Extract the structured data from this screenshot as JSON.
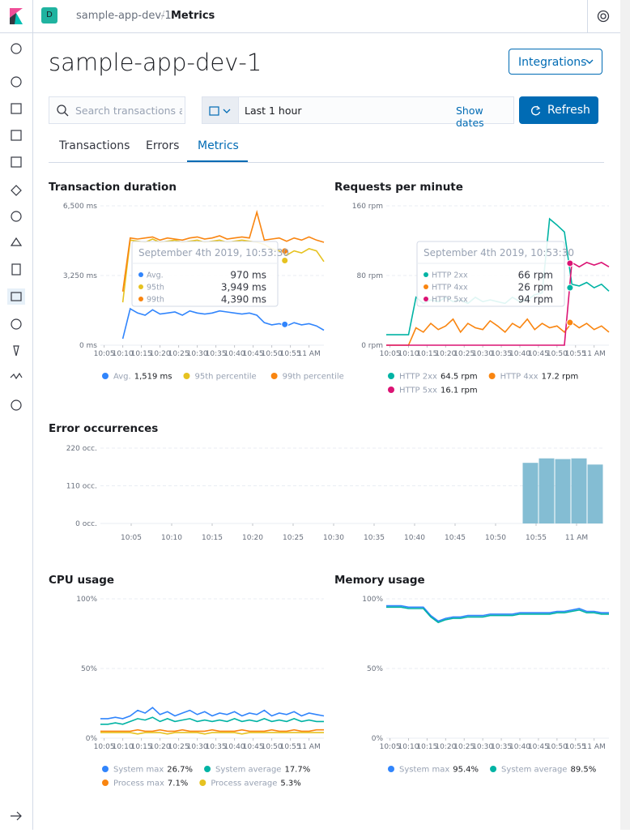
{
  "header": {
    "avatar": "D",
    "breadcrumb": [
      "sample-app-dev-1",
      "Metrics"
    ]
  },
  "title": "sample-app-dev-1",
  "integrations": "Integrations",
  "search_placeholder": "Search transactions and errors",
  "date_range": "Last 1 hour",
  "show_dates": "Show dates",
  "refresh": "Refresh",
  "tabs": [
    "Transactions",
    "Errors",
    "Metrics"
  ],
  "active_tab": 2,
  "chart_data": [
    {
      "type": "line",
      "title": "Transaction duration",
      "x": [
        4,
        6,
        8,
        10,
        12,
        14,
        16,
        18,
        20,
        22,
        24,
        26,
        28,
        30,
        32,
        34,
        36,
        38,
        40,
        42,
        44,
        46,
        48,
        50,
        52,
        54,
        56,
        58,
        60,
        62,
        64
      ],
      "xlim": [
        4,
        64
      ],
      "xticks": [
        {
          "value": 5,
          "label": "10:05"
        },
        {
          "value": 10,
          "label": "10:10"
        },
        {
          "value": 15,
          "label": "10:15"
        },
        {
          "value": 20,
          "label": "10:20"
        },
        {
          "value": 25,
          "label": "10:25"
        },
        {
          "value": 30,
          "label": "10:30"
        },
        {
          "value": 35,
          "label": "10:35"
        },
        {
          "value": 40,
          "label": "10:40"
        },
        {
          "value": 45,
          "label": "10:45"
        },
        {
          "value": 50,
          "label": "10:50"
        },
        {
          "value": 55,
          "label": "10:55"
        },
        {
          "value": 60,
          "label": "11 AM"
        }
      ],
      "ylim": [
        0,
        6500
      ],
      "yticks": [
        {
          "value": 0,
          "label": "0 ms"
        },
        {
          "value": 3250,
          "label": "3,250 ms"
        },
        {
          "value": 6500,
          "label": "6,500 ms"
        }
      ],
      "series": [
        {
          "name": "Avg.",
          "legend_value": "1,519 ms",
          "color": "#3185FC",
          "values": [
            null,
            null,
            null,
            300,
            1700,
            1500,
            1400,
            1650,
            1450,
            1500,
            1550,
            1400,
            1600,
            1500,
            1450,
            1500,
            1600,
            1550,
            1500,
            1450,
            1500,
            1400,
            1050,
            950,
            1000,
            900,
            1050,
            950,
            1000,
            900,
            700
          ]
        },
        {
          "name": "95th percentile",
          "color": "#E6C220",
          "values": [
            null,
            null,
            null,
            2000,
            4900,
            4850,
            4800,
            4950,
            4800,
            4850,
            4900,
            4800,
            4850,
            4900,
            4800,
            4850,
            4900,
            4800,
            4850,
            4900,
            4850,
            4800,
            4700,
            4500,
            4400,
            4200,
            4400,
            4300,
            4500,
            4400,
            3900
          ]
        },
        {
          "name": "99th percentile",
          "color": "#F98510",
          "values": [
            null,
            null,
            null,
            2500,
            5000,
            4950,
            5000,
            5050,
            4900,
            5000,
            4950,
            4900,
            5000,
            5050,
            4950,
            5000,
            5100,
            4950,
            5000,
            5050,
            5000,
            6200,
            4900,
            4950,
            5000,
            4850,
            5000,
            4900,
            5050,
            4900,
            4800
          ]
        }
      ],
      "tooltip": {
        "title": "September 4th 2019, 10:53:30",
        "x": 53.5,
        "names": [
          "Avg.",
          "95th",
          "99th"
        ],
        "values": [
          970,
          3949,
          4390
        ],
        "value_labels": [
          "970 ms",
          "3,949 ms",
          "4,390 ms"
        ]
      }
    },
    {
      "type": "line",
      "title": "Requests per minute",
      "x": [
        4,
        6,
        8,
        10,
        12,
        14,
        16,
        18,
        20,
        22,
        24,
        26,
        28,
        30,
        32,
        34,
        36,
        38,
        40,
        42,
        44,
        46,
        48,
        50,
        52,
        54,
        56,
        58,
        60,
        62,
        64
      ],
      "xlim": [
        4,
        64
      ],
      "xticks": [
        {
          "value": 5,
          "label": "10:05"
        },
        {
          "value": 10,
          "label": "10:10"
        },
        {
          "value": 15,
          "label": "10:15"
        },
        {
          "value": 20,
          "label": "10:20"
        },
        {
          "value": 25,
          "label": "10:25"
        },
        {
          "value": 30,
          "label": "10:30"
        },
        {
          "value": 35,
          "label": "10:35"
        },
        {
          "value": 40,
          "label": "10:40"
        },
        {
          "value": 45,
          "label": "10:45"
        },
        {
          "value": 50,
          "label": "10:50"
        },
        {
          "value": 55,
          "label": "10:55"
        },
        {
          "value": 60,
          "label": "11 AM"
        }
      ],
      "ylim": [
        0,
        160
      ],
      "yticks": [
        {
          "value": 0,
          "label": "0 rpm"
        },
        {
          "value": 80,
          "label": "80 rpm"
        },
        {
          "value": 160,
          "label": "160 rpm"
        }
      ],
      "series": [
        {
          "name": "HTTP 2xx",
          "legend_value": "64.5 rpm",
          "color": "#00B3A4",
          "values": [
            12,
            12,
            12,
            12,
            55,
            48,
            52,
            50,
            55,
            50,
            52,
            48,
            55,
            50,
            52,
            50,
            48,
            55,
            50,
            52,
            58,
            60,
            145,
            138,
            130,
            70,
            68,
            72,
            66,
            70,
            62
          ]
        },
        {
          "name": "HTTP 4xx",
          "legend_value": "17.2 rpm",
          "color": "#F98510",
          "values": [
            0,
            0,
            0,
            0,
            20,
            15,
            25,
            18,
            22,
            30,
            15,
            25,
            20,
            18,
            28,
            22,
            15,
            25,
            20,
            30,
            18,
            25,
            20,
            22,
            15,
            26,
            20,
            25,
            18,
            22,
            15
          ]
        },
        {
          "name": "HTTP 5xx",
          "legend_value": "16.1 rpm",
          "color": "#DB1374",
          "values": [
            0,
            0,
            0,
            0,
            0,
            0,
            0,
            0,
            0,
            0,
            0,
            0,
            0,
            0,
            0,
            0,
            0,
            0,
            0,
            0,
            0,
            0,
            0,
            0,
            0,
            95,
            90,
            95,
            92,
            95,
            90
          ]
        }
      ],
      "tooltip": {
        "title": "September 4th 2019, 10:53:30",
        "x": 53.5,
        "names": [
          "HTTP 2xx",
          "HTTP 4xx",
          "HTTP 5xx"
        ],
        "values": [
          66,
          26,
          94
        ],
        "value_labels": [
          "66 rpm",
          "26 rpm",
          "94 rpm"
        ]
      }
    },
    {
      "type": "histogram",
      "title": "Error occurrences",
      "bins": [
        53.3,
        55.3,
        57.3,
        59.3,
        61.3,
        63.3
      ],
      "counts": [
        177,
        190,
        188,
        190,
        172
      ],
      "color": "#84BDD3",
      "xlim": [
        1.2,
        63.3
      ],
      "xticks": [
        {
          "value": 5,
          "label": "10:05"
        },
        {
          "value": 10,
          "label": "10:10"
        },
        {
          "value": 15,
          "label": "10:15"
        },
        {
          "value": 20,
          "label": "10:20"
        },
        {
          "value": 25,
          "label": "10:25"
        },
        {
          "value": 30,
          "label": "10:30"
        },
        {
          "value": 35,
          "label": "10:35"
        },
        {
          "value": 40,
          "label": "10:40"
        },
        {
          "value": 45,
          "label": "10:45"
        },
        {
          "value": 50,
          "label": "10:50"
        },
        {
          "value": 55,
          "label": "10:55"
        },
        {
          "value": 60,
          "label": "11 AM"
        }
      ],
      "ylim": [
        0,
        220
      ],
      "yticks": [
        {
          "value": 0,
          "label": "0 occ."
        },
        {
          "value": 110,
          "label": "110 occ."
        },
        {
          "value": 220,
          "label": "220 occ."
        }
      ]
    },
    {
      "type": "line",
      "title": "CPU usage",
      "x": [
        4,
        6,
        8,
        10,
        12,
        14,
        16,
        18,
        20,
        22,
        24,
        26,
        28,
        30,
        32,
        34,
        36,
        38,
        40,
        42,
        44,
        46,
        48,
        50,
        52,
        54,
        56,
        58,
        60,
        62,
        64
      ],
      "xlim": [
        4,
        64
      ],
      "xticks": [
        {
          "value": 5,
          "label": "10:05"
        },
        {
          "value": 10,
          "label": "10:10"
        },
        {
          "value": 15,
          "label": "10:15"
        },
        {
          "value": 20,
          "label": "10:20"
        },
        {
          "value": 25,
          "label": "10:25"
        },
        {
          "value": 30,
          "label": "10:30"
        },
        {
          "value": 35,
          "label": "10:35"
        },
        {
          "value": 40,
          "label": "10:40"
        },
        {
          "value": 45,
          "label": "10:45"
        },
        {
          "value": 50,
          "label": "10:50"
        },
        {
          "value": 55,
          "label": "10:55"
        },
        {
          "value": 60,
          "label": "11 AM"
        }
      ],
      "ylim": [
        0,
        100
      ],
      "yticks": [
        {
          "value": 0,
          "label": "0%"
        },
        {
          "value": 50,
          "label": "50%"
        },
        {
          "value": 100,
          "label": "100%"
        }
      ],
      "series": [
        {
          "name": "System max",
          "legend_value": "26.7%",
          "color": "#3185FC",
          "values": [
            14,
            14,
            15,
            14,
            16,
            20,
            18,
            22,
            17,
            19,
            16,
            18,
            20,
            17,
            19,
            16,
            18,
            17,
            19,
            16,
            18,
            17,
            20,
            16,
            18,
            17,
            19,
            16,
            18,
            17,
            16
          ]
        },
        {
          "name": "System average",
          "legend_value": "17.7%",
          "color": "#00B3A4",
          "values": [
            10,
            10,
            11,
            10,
            12,
            14,
            13,
            15,
            12,
            14,
            12,
            13,
            14,
            12,
            13,
            12,
            13,
            12,
            14,
            12,
            13,
            12,
            14,
            12,
            13,
            12,
            14,
            12,
            13,
            12,
            12
          ]
        },
        {
          "name": "Process max",
          "legend_value": "7.1%",
          "color": "#F98510",
          "values": [
            5,
            5,
            5,
            5,
            5,
            6,
            5,
            5,
            6,
            5,
            5,
            6,
            5,
            5,
            5,
            6,
            5,
            5,
            5,
            6,
            5,
            5,
            5,
            6,
            5,
            5,
            6,
            5,
            5,
            6,
            6
          ]
        },
        {
          "name": "Process average",
          "legend_value": "5.3%",
          "color": "#E6C220",
          "values": [
            4,
            4,
            4,
            4,
            4,
            3,
            4,
            4,
            4,
            3,
            4,
            4,
            4,
            4,
            3,
            4,
            4,
            4,
            4,
            3,
            4,
            4,
            4,
            4,
            4,
            4,
            4,
            4,
            4,
            4,
            4
          ]
        }
      ]
    },
    {
      "type": "line",
      "title": "Memory usage",
      "x": [
        4,
        6,
        8,
        10,
        12,
        14,
        16,
        18,
        20,
        22,
        24,
        26,
        28,
        30,
        32,
        34,
        36,
        38,
        40,
        42,
        44,
        46,
        48,
        50,
        52,
        54,
        56,
        58,
        60,
        62,
        64
      ],
      "xlim": [
        4,
        64
      ],
      "xticks": [
        {
          "value": 5,
          "label": "10:05"
        },
        {
          "value": 10,
          "label": "10:10"
        },
        {
          "value": 15,
          "label": "10:15"
        },
        {
          "value": 20,
          "label": "10:20"
        },
        {
          "value": 25,
          "label": "10:25"
        },
        {
          "value": 30,
          "label": "10:30"
        },
        {
          "value": 35,
          "label": "10:35"
        },
        {
          "value": 40,
          "label": "10:40"
        },
        {
          "value": 45,
          "label": "10:45"
        },
        {
          "value": 50,
          "label": "10:50"
        },
        {
          "value": 55,
          "label": "10:55"
        },
        {
          "value": 60,
          "label": "11 AM"
        }
      ],
      "ylim": [
        0,
        100
      ],
      "yticks": [
        {
          "value": 0,
          "label": "0%"
        },
        {
          "value": 50,
          "label": "50%"
        },
        {
          "value": 100,
          "label": "100%"
        }
      ],
      "series": [
        {
          "name": "System max",
          "legend_value": "95.4%",
          "color": "#3185FC",
          "values": [
            95,
            95,
            95,
            94,
            94,
            94,
            88,
            84,
            86,
            87,
            87,
            88,
            88,
            88,
            89,
            89,
            89,
            89,
            90,
            90,
            90,
            90,
            90,
            91,
            91,
            92,
            93,
            91,
            91,
            90,
            90
          ]
        },
        {
          "name": "System average",
          "legend_value": "89.5%",
          "color": "#00B3A4",
          "values": [
            94,
            94,
            94,
            93,
            93,
            93,
            87,
            83,
            85,
            86,
            86,
            87,
            87,
            87,
            88,
            88,
            88,
            88,
            89,
            89,
            89,
            89,
            89,
            90,
            90,
            91,
            92,
            90,
            90,
            89,
            89
          ]
        }
      ]
    }
  ]
}
